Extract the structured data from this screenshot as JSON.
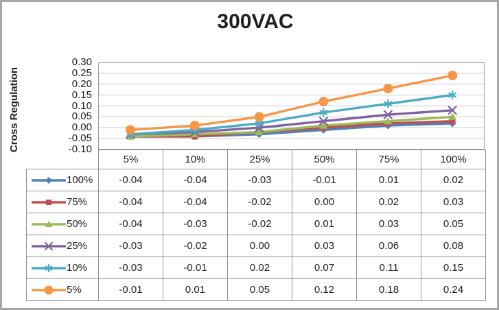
{
  "chart_data": {
    "type": "line",
    "title": "300VAC",
    "ylabel": "Cross Regulation",
    "xlabel": "",
    "categories": [
      "5%",
      "10%",
      "25%",
      "50%",
      "75%",
      "100%"
    ],
    "ylim": [
      -0.1,
      0.3
    ],
    "ytick_interval": 0.05,
    "ytick_labels": [
      "0.30",
      "0.25",
      "0.20",
      "0.15",
      "0.10",
      "0.05",
      "0.00",
      "-0.05",
      "-0.10"
    ],
    "grid": true,
    "legend_position": "data-table-left",
    "decimals": 2,
    "series": [
      {
        "name": "100%",
        "color": "#4F81BD",
        "marker": "diamond",
        "values": [
          -0.04,
          -0.04,
          -0.03,
          -0.01,
          0.01,
          0.02
        ],
        "values_formatted": [
          "-0.04",
          "-0.04",
          "-0.03",
          "-0.01",
          "0.01",
          "0.02"
        ]
      },
      {
        "name": "75%",
        "color": "#C0504D",
        "marker": "square",
        "values": [
          -0.04,
          -0.04,
          -0.02,
          0.0,
          0.02,
          0.03
        ],
        "values_formatted": [
          "-0.04",
          "-0.04",
          "-0.02",
          "0.00",
          "0.02",
          "0.03"
        ]
      },
      {
        "name": "50%",
        "color": "#9BBB59",
        "marker": "triangle",
        "values": [
          -0.04,
          -0.03,
          -0.02,
          0.01,
          0.03,
          0.05
        ],
        "values_formatted": [
          "-0.04",
          "-0.03",
          "-0.02",
          "0.01",
          "0.03",
          "0.05"
        ]
      },
      {
        "name": "25%",
        "color": "#8064A2",
        "marker": "x",
        "values": [
          -0.03,
          -0.02,
          0.0,
          0.03,
          0.06,
          0.08
        ],
        "values_formatted": [
          "-0.03",
          "-0.02",
          "0.00",
          "0.03",
          "0.06",
          "0.08"
        ]
      },
      {
        "name": "10%",
        "color": "#4BACC6",
        "marker": "asterisk",
        "values": [
          -0.03,
          -0.01,
          0.02,
          0.07,
          0.11,
          0.15
        ],
        "values_formatted": [
          "-0.03",
          "-0.01",
          "0.02",
          "0.07",
          "0.11",
          "0.15"
        ]
      },
      {
        "name": "5%",
        "color": "#F79646",
        "marker": "circle",
        "values": [
          -0.01,
          0.01,
          0.05,
          0.12,
          0.18,
          0.24
        ],
        "values_formatted": [
          "-0.01",
          "0.01",
          "0.05",
          "0.12",
          "0.18",
          "0.24"
        ]
      }
    ]
  },
  "colors": {
    "frame_border": "#a6a6a6",
    "plot_border": "#9b9b9b",
    "grid_line": "#c9c9c9",
    "table_border": "#919191",
    "text": "#1f1f1f",
    "background": "#ffffff"
  }
}
